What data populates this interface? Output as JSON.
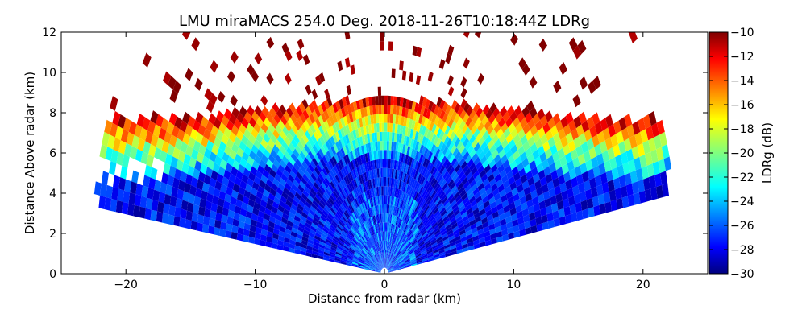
{
  "chart_data": {
    "type": "heatmap",
    "title": "LMU miraMACS 254.0 Deg. 2018-11-26T10:18:44Z  LDRg",
    "xlabel": "Distance from radar (km)",
    "ylabel": "Distance Above radar  (km)",
    "xlim": [
      -25,
      25
    ],
    "ylim": [
      0,
      12
    ],
    "xticks": [
      -20,
      -10,
      0,
      10,
      20
    ],
    "yticks": [
      0,
      2,
      4,
      6,
      8,
      10,
      12
    ],
    "colorbar": {
      "label": "LDRg (dB)",
      "range": [
        -30,
        -10
      ],
      "ticks": [
        -30,
        -28,
        -26,
        -24,
        -22,
        -20,
        -18,
        -16,
        -14,
        -12,
        -10
      ],
      "colormap": "jet"
    },
    "scan": {
      "elevation_range_deg": [
        10,
        170
      ],
      "max_range_km": 22.5
    }
  }
}
